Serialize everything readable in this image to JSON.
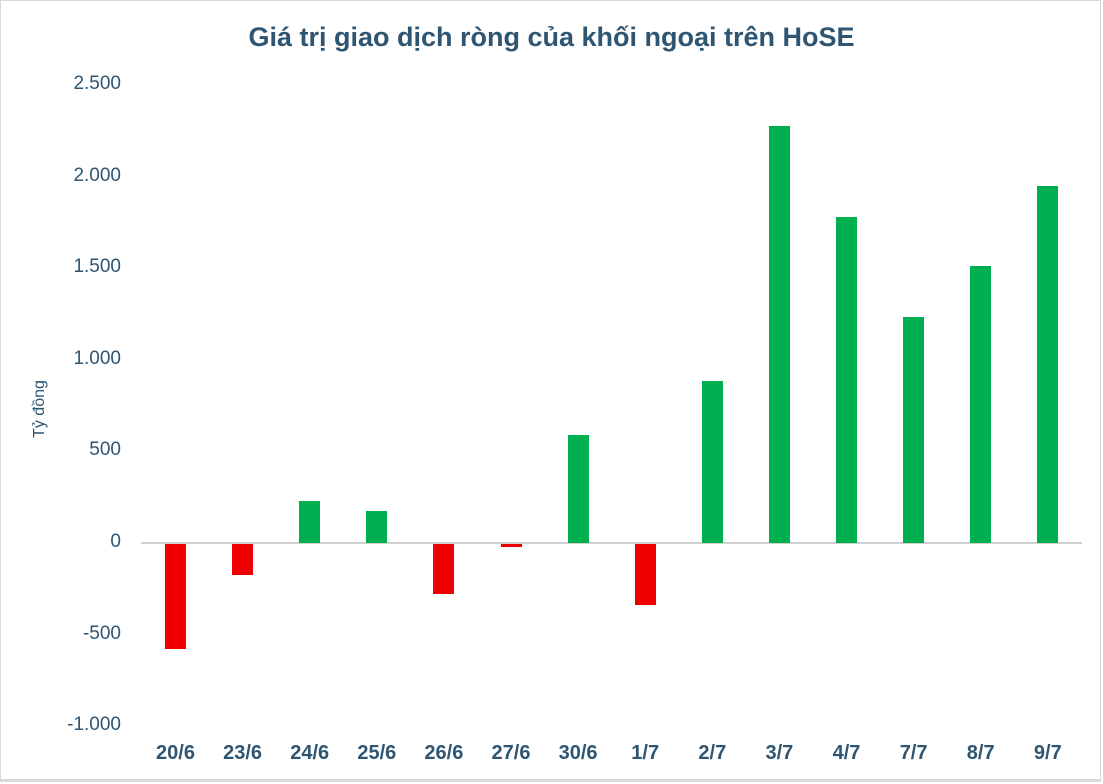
{
  "chart_data": {
    "type": "bar",
    "title": "Giá trị giao dịch ròng của khối ngoại trên HoSE",
    "xlabel": "",
    "ylabel": "Tỷ đồng",
    "ylim": [
      -1000,
      2500
    ],
    "yticks": [
      "2.500",
      "2.000",
      "1.500",
      "1.000",
      "500",
      "0",
      "-500",
      "-1.000"
    ],
    "ytick_values": [
      2500,
      2000,
      1500,
      1000,
      500,
      0,
      -500,
      -1000
    ],
    "categories": [
      "20/6",
      "23/6",
      "24/6",
      "25/6",
      "26/6",
      "27/6",
      "30/6",
      "1/7",
      "2/7",
      "3/7",
      "4/7",
      "7/7",
      "8/7",
      "9/7"
    ],
    "values": [
      -573,
      -169,
      229,
      175,
      -273,
      -16,
      590,
      -333,
      884,
      2276,
      1780,
      1234,
      1512,
      1949
    ],
    "colors": {
      "positive": "#00b050",
      "negative": "#ee0000",
      "text": "#2e5572",
      "axis": "#d0d0d0"
    },
    "grid": false,
    "legend": null
  }
}
